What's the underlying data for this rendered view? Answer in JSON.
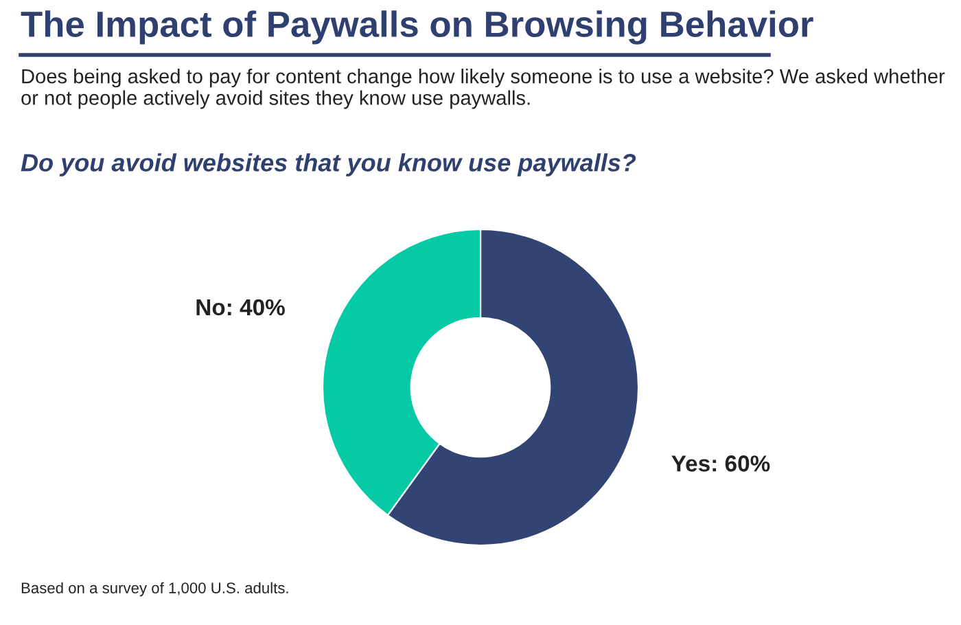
{
  "chart_data": {
    "type": "donut",
    "title": "The Impact of Paywalls on Browsing Behavior",
    "subtitle": "Does being asked to pay for content change how likely someone is to use a website? We asked whether or not people actively avoid sites they know use paywalls.",
    "annotations": [
      "Do you avoid websites that you know use paywalls?",
      "Based on a survey of 1,000 U.S. adults."
    ],
    "categories": [
      "Yes: 60%",
      "No: 40%"
    ],
    "values": [
      60,
      40
    ],
    "colors": [
      "#324473",
      "#06c9a6"
    ],
    "legend": false
  }
}
